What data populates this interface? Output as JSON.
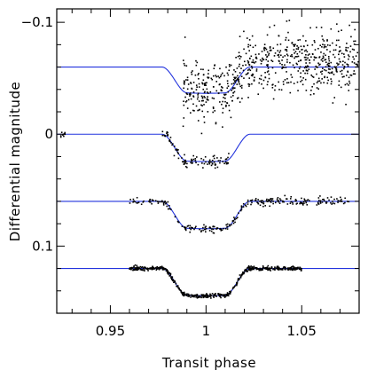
{
  "chart_data": {
    "type": "scatter",
    "title": "",
    "xlabel": "Transit phase",
    "ylabel": "Differential magnitude",
    "xlim": [
      0.922,
      1.08
    ],
    "ylim": [
      0.16,
      -0.112
    ],
    "y_inverted": true,
    "grid": false,
    "x_ticks": [
      0.95,
      1,
      1.05
    ],
    "x_tick_labels": [
      "0.95",
      "1",
      "1.05"
    ],
    "y_ticks": [
      -0.1,
      0,
      0.1
    ],
    "y_tick_labels": [
      "−0.1",
      "0",
      "0.1"
    ],
    "colors": {
      "model": "#2233dd",
      "points": "#000000",
      "axes": "#000000"
    },
    "series": [
      {
        "baseline": -0.06,
        "depth": 0.023,
        "ingress_start": 0.977,
        "ingress_end": 0.99,
        "egress_start": 1.01,
        "egress_end": 1.023,
        "model_x_range": [
          0.922,
          1.08
        ],
        "data_x_range": [
          0.988,
          1.08
        ],
        "scatter": 0.013,
        "n_points": 700
      },
      {
        "baseline": 0.0,
        "depth": 0.024,
        "ingress_start": 0.977,
        "ingress_end": 0.99,
        "egress_start": 1.01,
        "egress_end": 1.023,
        "model_x_range": [
          0.922,
          1.08
        ],
        "data_x_range": [
          0.924,
          0.927,
          0.977,
          1.012
        ],
        "scatter": 0.0025,
        "n_points": 110
      },
      {
        "baseline": 0.06,
        "depth": 0.024,
        "ingress_start": 0.977,
        "ingress_end": 0.99,
        "egress_start": 1.01,
        "egress_end": 1.023,
        "model_x_range": [
          0.922,
          1.08
        ],
        "data_x_range": [
          0.96,
          1.075
        ],
        "scatter": 0.0018,
        "n_points": 260
      },
      {
        "baseline": 0.12,
        "depth": 0.024,
        "ingress_start": 0.977,
        "ingress_end": 0.99,
        "egress_start": 1.01,
        "egress_end": 1.023,
        "model_x_range": [
          0.922,
          1.08
        ],
        "data_x_range": [
          0.96,
          1.05
        ],
        "scatter": 0.0009,
        "n_points": 520
      }
    ]
  }
}
